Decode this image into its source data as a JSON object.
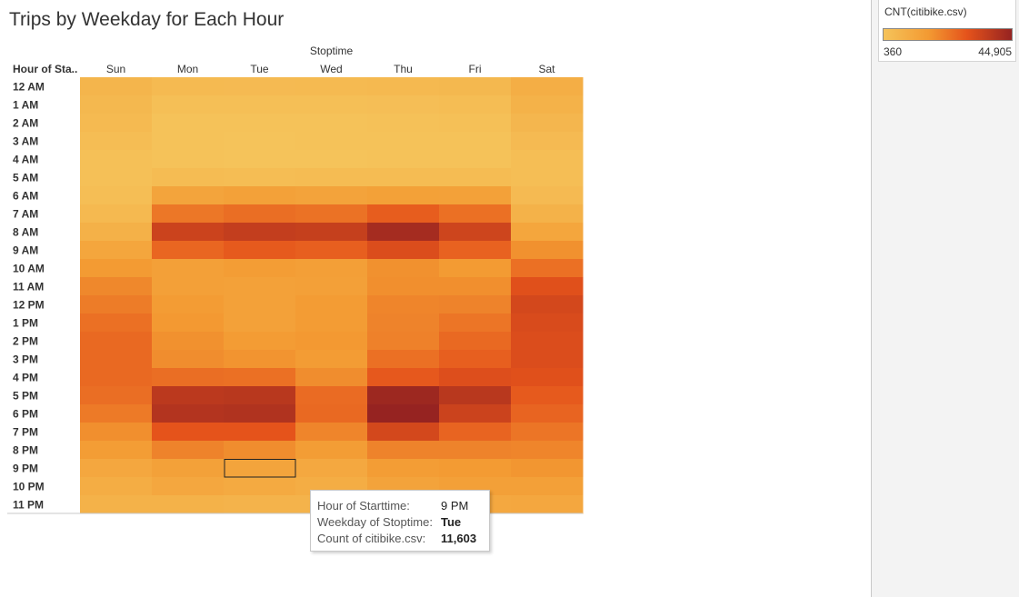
{
  "page_title": "Trips by Weekday for Each Hour",
  "legend": {
    "title": "CNT(citibike.csv)",
    "min_label": "360",
    "max_label": "44,905",
    "min": 360,
    "max": 44905,
    "colors": [
      "#f5c35a",
      "#f39a32",
      "#e5531b",
      "#962321"
    ]
  },
  "tooltip": {
    "rows": [
      {
        "label": "Hour of Starttime:",
        "value": "9 PM"
      },
      {
        "label": "Weekday of Stoptime:",
        "value": "Tue"
      },
      {
        "label": "Count of citibike.csv:",
        "value": "11,603"
      }
    ]
  },
  "chart_data": {
    "type": "heatmap",
    "title": "Trips by Weekday for Each Hour",
    "column_header": "Stoptime",
    "row_header": "Hour of Sta..",
    "columns": [
      "Sun",
      "Mon",
      "Tue",
      "Wed",
      "Thu",
      "Fri",
      "Sat"
    ],
    "rows": [
      "12 AM",
      "1 AM",
      "2 AM",
      "3 AM",
      "4 AM",
      "5 AM",
      "6 AM",
      "7 AM",
      "8 AM",
      "9 AM",
      "10 AM",
      "11 AM",
      "12 PM",
      "1 PM",
      "2 PM",
      "3 PM",
      "4 PM",
      "5 PM",
      "6 PM",
      "7 PM",
      "8 PM",
      "9 PM",
      "10 PM",
      "11 PM"
    ],
    "values": [
      [
        5500,
        3600,
        3500,
        3700,
        4000,
        4500,
        8000
      ],
      [
        4500,
        1800,
        1700,
        1800,
        2000,
        2500,
        6500
      ],
      [
        3600,
        900,
        800,
        900,
        1000,
        1400,
        5000
      ],
      [
        2500,
        600,
        500,
        600,
        700,
        900,
        3500
      ],
      [
        1600,
        600,
        500,
        500,
        600,
        700,
        2300
      ],
      [
        1500,
        2800,
        2700,
        2800,
        2900,
        2900,
        2200
      ],
      [
        2300,
        11500,
        12500,
        12000,
        12800,
        12500,
        3500
      ],
      [
        4000,
        22500,
        24500,
        23500,
        28000,
        24000,
        6500
      ],
      [
        7000,
        35000,
        36500,
        36000,
        42000,
        34500,
        11000
      ],
      [
        11000,
        26000,
        28500,
        27500,
        32000,
        27000,
        17000
      ],
      [
        15000,
        13000,
        14000,
        13500,
        17000,
        15000,
        24000
      ],
      [
        19000,
        13000,
        12500,
        13000,
        17500,
        17500,
        31000
      ],
      [
        21500,
        14500,
        12500,
        14500,
        19500,
        20000,
        33500
      ],
      [
        24000,
        15500,
        12500,
        14500,
        20000,
        23000,
        32500
      ],
      [
        25500,
        17000,
        14500,
        15500,
        20500,
        25500,
        32000
      ],
      [
        25500,
        18000,
        16500,
        14500,
        24000,
        27500,
        32000
      ],
      [
        25500,
        24500,
        24000,
        18000,
        29000,
        31500,
        31000
      ],
      [
        24500,
        38000,
        38500,
        25000,
        43500,
        38500,
        28500
      ],
      [
        22000,
        39500,
        40000,
        25500,
        44905,
        35000,
        26500
      ],
      [
        17500,
        30000,
        30000,
        19500,
        33500,
        26500,
        23000
      ],
      [
        14000,
        20000,
        18000,
        14000,
        20000,
        20000,
        19500
      ],
      [
        10500,
        12500,
        11603,
        10000,
        14000,
        15000,
        16000
      ],
      [
        8500,
        10500,
        9500,
        8500,
        12000,
        13000,
        13000
      ],
      [
        6500,
        6500,
        6000,
        6000,
        9000,
        10000,
        10500
      ]
    ],
    "highlighted": {
      "row": "9 PM",
      "column": "Tue"
    }
  }
}
